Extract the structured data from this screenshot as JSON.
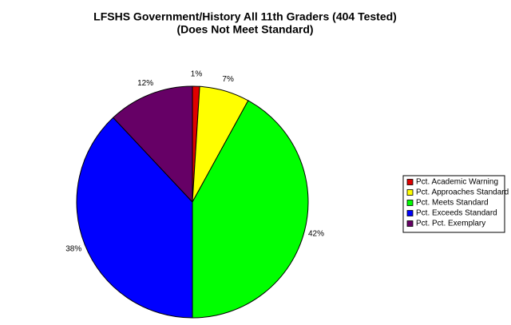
{
  "chart_data": {
    "type": "pie",
    "title": "LFSHS Government/History All 11th Graders (404 Tested)",
    "subtitle": "(Does Not Meet Standard)",
    "categories": [
      "Pct. Academic Warning",
      "Pct. Approaches Standard",
      "Pct. Meets Standard",
      "Pct. Exceeds Standard",
      "Pct. Pct. Exemplary"
    ],
    "values": [
      1,
      7,
      42,
      38,
      12
    ],
    "value_labels": [
      "1%",
      "7%",
      "42%",
      "38%",
      "12%"
    ],
    "colors": [
      "#e00000",
      "#ffff00",
      "#00ff00",
      "#0000ff",
      "#660066"
    ],
    "legend": "right"
  }
}
